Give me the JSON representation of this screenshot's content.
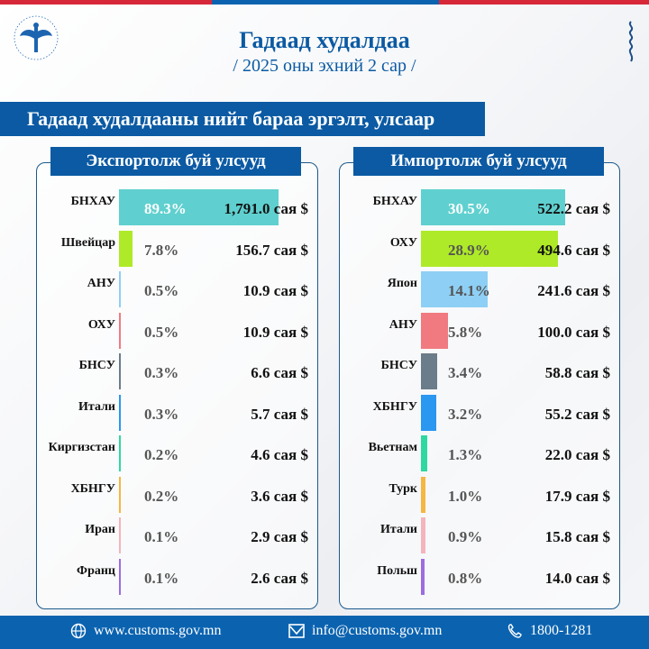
{
  "header": {
    "title": "Гадаад худалдаа",
    "subtitle": "/ 2025 оны эхний 2 сар /"
  },
  "section_title": "Гадаад худалдааны нийт бараа эргэлт, улсаар",
  "export_panel": {
    "title": "Экспортолж буй улсууд"
  },
  "import_panel": {
    "title": "Импортолж буй улсууд"
  },
  "footer": {
    "website": "www.customs.gov.mn",
    "email": "info@customs.gov.mn",
    "phone": "1800-1281"
  },
  "chart_data": [
    {
      "type": "bar",
      "orientation": "horizontal",
      "title": "Экспортолж буй улсууд",
      "unit": "сая $",
      "categories": [
        "БНХАУ",
        "Швейцар",
        "АНУ",
        "ОХУ",
        "БНСУ",
        "Итали",
        "Киргизстан",
        "ХБНГУ",
        "Иран",
        "Франц"
      ],
      "values": [
        1791.0,
        156.7,
        10.9,
        10.9,
        6.6,
        5.7,
        4.6,
        3.6,
        2.9,
        2.6
      ],
      "shares_pct": [
        89.3,
        7.8,
        0.5,
        0.5,
        0.3,
        0.3,
        0.2,
        0.2,
        0.1,
        0.1
      ],
      "value_labels": [
        "1,791.0  сая $",
        "156.7 сая $",
        "10.9 сая $",
        "10.9 сая $",
        "6.6 сая $",
        "5.7 сая $",
        "4.6 сая $",
        "3.6 сая $",
        "2.9 сая $",
        "2.6 сая $"
      ],
      "pct_labels": [
        "89.3%",
        "7.8%",
        "0.5%",
        "0.5%",
        "0.3%",
        "0.3%",
        "0.2%",
        "0.2%",
        "0.1%",
        "0.1%"
      ],
      "colors": [
        "#5fd0cf",
        "#aeea27",
        "#8ecff5",
        "#f07a80",
        "#6b7c8a",
        "#2a97f0",
        "#2fd8a0",
        "#f5b642",
        "#f4b4bc",
        "#9b6de0"
      ]
    },
    {
      "type": "bar",
      "orientation": "horizontal",
      "title": "Импортолж буй улсууд",
      "unit": "сая $",
      "categories": [
        "БНХАУ",
        "ОХУ",
        "Япон",
        "АНУ",
        "БНСУ",
        "ХБНГУ",
        "Вьетнам",
        "Турк",
        "Итали",
        "Польш"
      ],
      "values": [
        522.2,
        494.6,
        241.6,
        100.0,
        58.8,
        55.2,
        22.0,
        17.9,
        15.8,
        14.0
      ],
      "shares_pct": [
        30.5,
        28.9,
        14.1,
        5.8,
        3.4,
        3.2,
        1.3,
        1.0,
        0.9,
        0.8
      ],
      "value_labels": [
        "522.2 сая $",
        "494.6 сая $",
        "241.6 сая $",
        "100.0 сая $",
        "58.8 сая $",
        "55.2 сая $",
        "22.0 сая $",
        "17.9 сая $",
        "15.8 сая $",
        "14.0 сая $"
      ],
      "pct_labels": [
        "30.5%",
        "28.9%",
        "14.1%",
        "5.8%",
        "3.4%",
        "3.2%",
        "1.3%",
        "1.0%",
        "0.9%",
        "0.8%"
      ],
      "colors": [
        "#5fd0cf",
        "#aeea27",
        "#8ecff5",
        "#f07a80",
        "#6b7c8a",
        "#2a97f0",
        "#2fd8a0",
        "#f5b642",
        "#f4b4bc",
        "#9b6de0"
      ]
    }
  ]
}
